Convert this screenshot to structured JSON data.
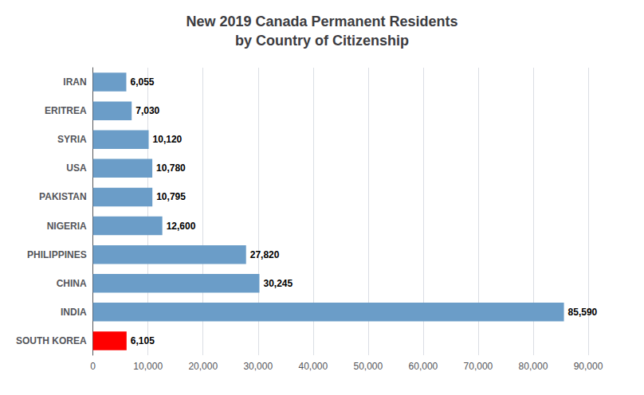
{
  "chart_data": {
    "type": "bar",
    "orientation": "horizontal",
    "title": "New 2019 Canada Permanent Residents\nby Country of Citizenship",
    "categories": [
      "IRAN",
      "ERITREA",
      "SYRIA",
      "USA",
      "PAKISTAN",
      "NIGERIA",
      "PHILIPPINES",
      "CHINA",
      "INDIA",
      "SOUTH KOREA"
    ],
    "values": [
      6055,
      7030,
      10120,
      10780,
      10795,
      12600,
      27820,
      30245,
      85590,
      6105
    ],
    "value_labels": [
      "6,055",
      "7,030",
      "10,120",
      "10,780",
      "10,795",
      "12,600",
      "27,820",
      "30,245",
      "85,590",
      "6,105"
    ],
    "colors": [
      "#6b9dc8",
      "#6b9dc8",
      "#6b9dc8",
      "#6b9dc8",
      "#6b9dc8",
      "#6b9dc8",
      "#6b9dc8",
      "#6b9dc8",
      "#6b9dc8",
      "#ff0000"
    ],
    "xlim": [
      0,
      90000
    ],
    "xticks": [
      0,
      {
        "value": 10000,
        "label": "10,000"
      },
      {
        "value": 20000,
        "label": "20,000"
      },
      {
        "value": 30000,
        "label": "30,000"
      },
      {
        "value": 40000,
        "label": "40,000"
      },
      {
        "value": 50000,
        "label": "50,000"
      },
      {
        "value": 60000,
        "label": "60,000"
      },
      {
        "value": 70000,
        "label": "70,000"
      },
      {
        "value": 80000,
        "label": "80,000"
      },
      {
        "value": 90000,
        "label": "90,000"
      }
    ],
    "grid": true,
    "data_labels": true
  }
}
